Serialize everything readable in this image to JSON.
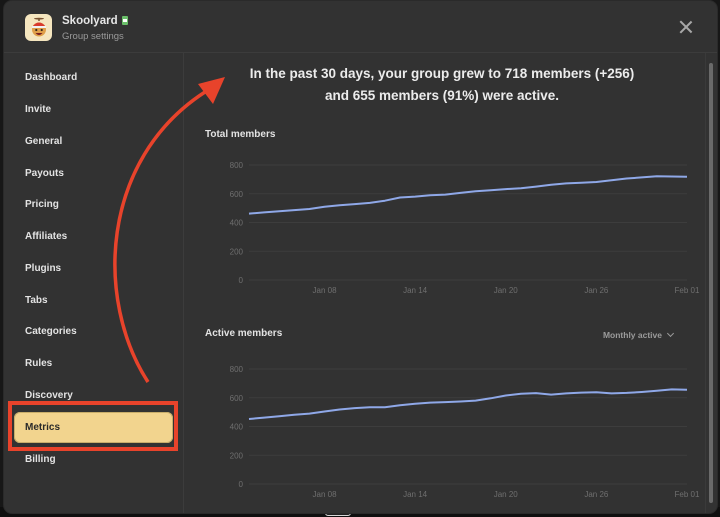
{
  "header": {
    "group_name": "Skoolyard",
    "subtitle": "Group settings",
    "close_label": "×"
  },
  "sidebar": {
    "items": [
      {
        "label": "Dashboard",
        "active": false
      },
      {
        "label": "Invite",
        "active": false
      },
      {
        "label": "General",
        "active": false
      },
      {
        "label": "Payouts",
        "active": false
      },
      {
        "label": "Pricing",
        "active": false
      },
      {
        "label": "Affiliates",
        "active": false
      },
      {
        "label": "Plugins",
        "active": false
      },
      {
        "label": "Tabs",
        "active": false
      },
      {
        "label": "Categories",
        "active": false
      },
      {
        "label": "Rules",
        "active": false
      },
      {
        "label": "Discovery",
        "active": false
      },
      {
        "label": "Metrics",
        "active": true
      },
      {
        "label": "Billing",
        "active": false
      }
    ]
  },
  "summary": {
    "line1": "In the past 30 days, your group grew to 718 members (+256)",
    "line2": "and 655 members (91%) were active."
  },
  "charts": {
    "total": {
      "title": "Total members"
    },
    "active": {
      "title": "Active members",
      "select_value": "Monthly active"
    }
  },
  "colors": {
    "accent_line": "#8fa8e8",
    "active_nav": "#f2d48e",
    "annotation_red": "#e8432b"
  },
  "chart_data": [
    {
      "type": "line",
      "title": "Total members",
      "xlabel": "",
      "ylabel": "",
      "ylim": [
        0,
        800
      ],
      "yticks": [
        0,
        200,
        400,
        600,
        800
      ],
      "xticks": [
        "Jan 08",
        "Jan 14",
        "Jan 20",
        "Jan 26",
        "Feb 01"
      ],
      "grid": true,
      "x": [
        "Jan 03",
        "Jan 04",
        "Jan 05",
        "Jan 06",
        "Jan 07",
        "Jan 08",
        "Jan 09",
        "Jan 10",
        "Jan 11",
        "Jan 12",
        "Jan 13",
        "Jan 14",
        "Jan 15",
        "Jan 16",
        "Jan 17",
        "Jan 18",
        "Jan 19",
        "Jan 20",
        "Jan 21",
        "Jan 22",
        "Jan 23",
        "Jan 24",
        "Jan 25",
        "Jan 26",
        "Jan 27",
        "Jan 28",
        "Jan 29",
        "Jan 30",
        "Jan 31",
        "Feb 01"
      ],
      "series": [
        {
          "name": "Total members",
          "values": [
            462,
            470,
            478,
            486,
            494,
            510,
            520,
            528,
            536,
            552,
            574,
            580,
            590,
            594,
            606,
            618,
            624,
            632,
            638,
            650,
            662,
            672,
            676,
            682,
            694,
            706,
            714,
            722,
            720,
            718
          ]
        }
      ]
    },
    {
      "type": "line",
      "title": "Active members",
      "xlabel": "",
      "ylabel": "",
      "ylim": [
        0,
        800
      ],
      "yticks": [
        0,
        200,
        400,
        600,
        800
      ],
      "xticks": [
        "Jan 08",
        "Jan 14",
        "Jan 20",
        "Jan 26",
        "Feb 01"
      ],
      "grid": true,
      "x": [
        "Jan 03",
        "Jan 04",
        "Jan 05",
        "Jan 06",
        "Jan 07",
        "Jan 08",
        "Jan 09",
        "Jan 10",
        "Jan 11",
        "Jan 12",
        "Jan 13",
        "Jan 14",
        "Jan 15",
        "Jan 16",
        "Jan 17",
        "Jan 18",
        "Jan 19",
        "Jan 20",
        "Jan 21",
        "Jan 22",
        "Jan 23",
        "Jan 24",
        "Jan 25",
        "Jan 26",
        "Jan 27",
        "Jan 28",
        "Jan 29",
        "Jan 30",
        "Jan 31",
        "Feb 01"
      ],
      "series": [
        {
          "name": "Active members",
          "values": [
            452,
            462,
            472,
            482,
            490,
            504,
            518,
            528,
            534,
            534,
            548,
            558,
            566,
            570,
            574,
            580,
            596,
            616,
            628,
            632,
            622,
            630,
            636,
            638,
            630,
            634,
            640,
            648,
            658,
            655
          ]
        }
      ]
    }
  ]
}
